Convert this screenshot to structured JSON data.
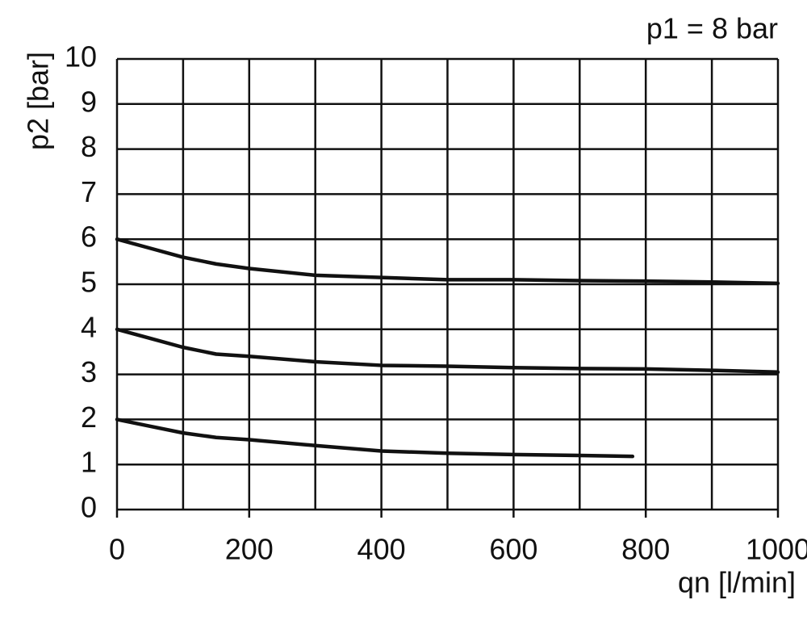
{
  "chart_data": {
    "type": "line",
    "annotation": "p1 = 8 bar",
    "y_label": "p2 [bar]",
    "x_label": "qn [l/min]",
    "xlim": [
      0,
      1000
    ],
    "xticks": [
      0,
      200,
      400,
      600,
      800,
      1000
    ],
    "xgrid": [
      0,
      100,
      200,
      300,
      400,
      500,
      600,
      700,
      800,
      900,
      1000
    ],
    "ylim": [
      0,
      10
    ],
    "yticks": [
      0,
      1,
      2,
      3,
      4,
      5,
      6,
      7,
      8,
      9,
      10
    ],
    "grid": true,
    "series": [
      {
        "color": "#111111",
        "x": [
          0,
          50,
          100,
          150,
          200,
          300,
          400,
          500,
          600,
          700,
          800,
          900,
          1000
        ],
        "values": [
          6.0,
          5.8,
          5.6,
          5.45,
          5.35,
          5.2,
          5.15,
          5.1,
          5.1,
          5.08,
          5.07,
          5.05,
          5.02
        ]
      },
      {
        "color": "#111111",
        "x": [
          0,
          50,
          100,
          150,
          200,
          300,
          400,
          500,
          600,
          700,
          800,
          900,
          1000
        ],
        "values": [
          4.0,
          3.8,
          3.6,
          3.45,
          3.4,
          3.28,
          3.2,
          3.18,
          3.15,
          3.13,
          3.12,
          3.09,
          3.05
        ]
      },
      {
        "color": "#111111",
        "x": [
          0,
          50,
          100,
          150,
          200,
          300,
          400,
          500,
          600,
          700,
          780
        ],
        "values": [
          2.0,
          1.85,
          1.7,
          1.6,
          1.55,
          1.42,
          1.3,
          1.25,
          1.22,
          1.2,
          1.18
        ]
      }
    ]
  }
}
